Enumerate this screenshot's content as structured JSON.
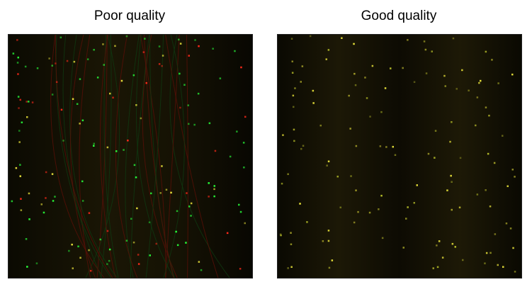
{
  "panels": [
    {
      "title": "Poor quality"
    },
    {
      "title": "Good quality"
    }
  ],
  "colors": {
    "background": "#ffffff",
    "spot_red": "#ff2a1a",
    "spot_green": "#28ff3a",
    "spot_yellow": "#e8e23a",
    "scratch_red": "#5a0f08",
    "scratch_green": "#0f3a12"
  }
}
